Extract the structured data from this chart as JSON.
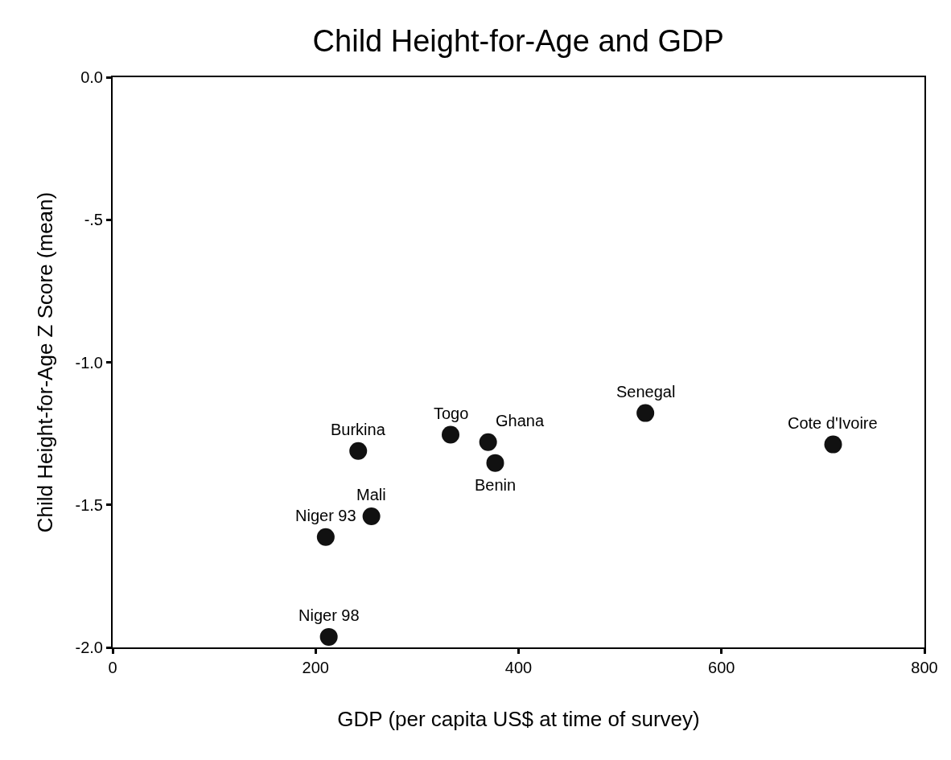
{
  "chart_data": {
    "type": "scatter",
    "title": "Child Height-for-Age and GDP",
    "xlabel": "GDP (per capita US$ at time of survey)",
    "ylabel": "Child Height-for-Age Z Score (mean)",
    "x": [
      242,
      333,
      370,
      377,
      525,
      710,
      255,
      210,
      213
    ],
    "series": [
      {
        "color": "#111111",
        "values": [
          -1.311,
          -1.254,
          -1.28,
          -1.353,
          -1.178,
          -1.288,
          -1.54,
          -1.613,
          -1.963
        ]
      }
    ],
    "annotations": [
      {
        "text": "Burkina",
        "x": 242,
        "y": -1.311
      },
      {
        "text": "Togo",
        "x": 333,
        "y": -1.254
      },
      {
        "text": "Ghana",
        "x": 370,
        "y": -1.28
      },
      {
        "text": "Benin",
        "x": 377,
        "y": -1.353
      },
      {
        "text": "Senegal",
        "x": 525,
        "y": -1.178
      },
      {
        "text": "Cote d'Ivoire",
        "x": 710,
        "y": -1.288
      },
      {
        "text": "Mali",
        "x": 255,
        "y": -1.54
      },
      {
        "text": "Niger 93",
        "x": 210,
        "y": -1.613
      },
      {
        "text": "Niger 98",
        "x": 213,
        "y": -1.963
      }
    ],
    "xlim": [
      0,
      800
    ],
    "xticks": [
      0,
      200,
      400,
      600,
      800
    ],
    "ylim": [
      -2,
      0
    ],
    "yticks": [
      {
        "value": 0,
        "label": "0.0"
      },
      {
        "value": -0.5,
        "label": "-.5"
      },
      {
        "value": -1,
        "label": "-1.0"
      },
      {
        "value": -1.5,
        "label": "-1.5"
      },
      {
        "value": -2,
        "label": "-2.0"
      }
    ],
    "legend": false,
    "marker": "circle"
  }
}
